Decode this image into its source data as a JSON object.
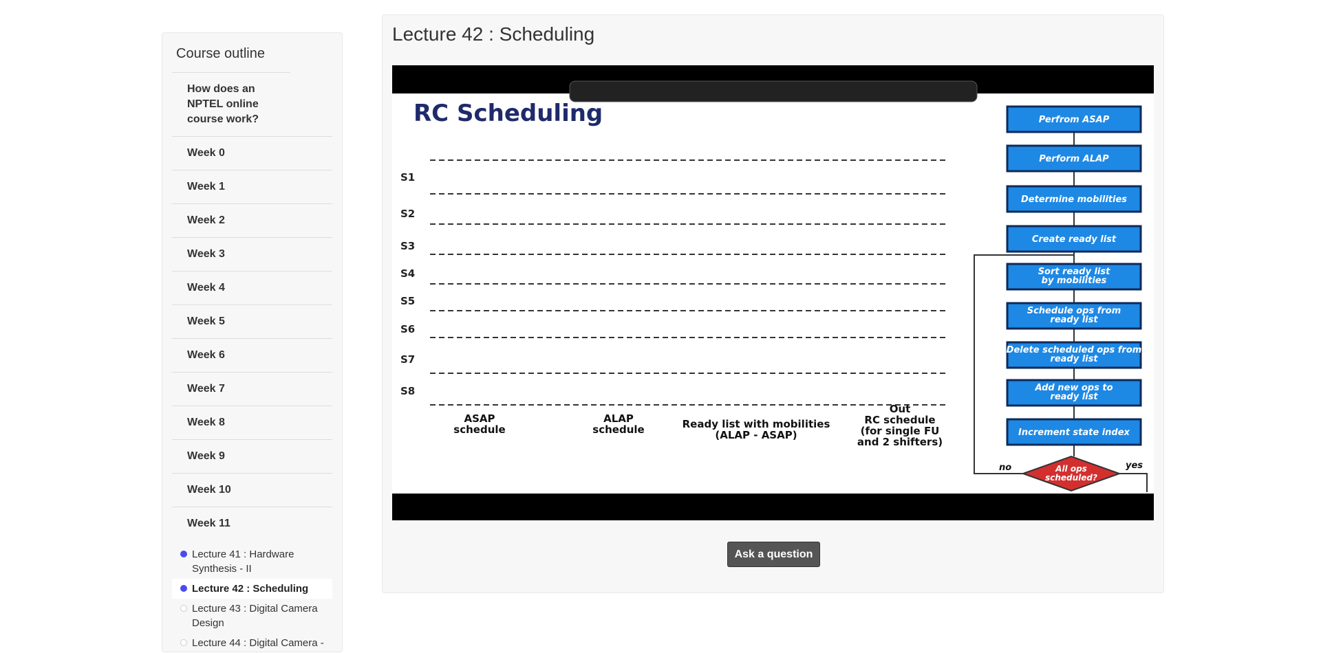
{
  "sidebar": {
    "title": "Course outline",
    "items": [
      "How does an NPTEL online course work?",
      "Week 0",
      "Week 1",
      "Week 2",
      "Week 3",
      "Week 4",
      "Week 5",
      "Week 6",
      "Week 7",
      "Week 8",
      "Week 9",
      "Week 10",
      "Week 11"
    ],
    "lectures": [
      {
        "label": "Lecture 41 : Hardware Synthesis - II",
        "status": "done"
      },
      {
        "label": "Lecture 42 : Scheduling",
        "status": "current"
      },
      {
        "label": "Lecture 43 : Digital Camera Design",
        "status": "todo"
      },
      {
        "label": "Lecture 44 : Digital Camera -",
        "status": "todo"
      }
    ]
  },
  "main": {
    "title": "Lecture 42 : Scheduling",
    "button": "Ask a question",
    "slide": {
      "title": "RC Scheduling",
      "stages": [
        "S1",
        "S2",
        "S3",
        "S4",
        "S5",
        "S6",
        "S7",
        "S8"
      ],
      "captions": [
        [
          "ASAP",
          "schedule"
        ],
        [
          "ALAP",
          "schedule"
        ],
        [
          "Ready list with mobilities",
          "(ALAP - ASAP)"
        ],
        [
          "Out",
          "RC schedule",
          "(for single FU",
          "and 2 shifters)"
        ]
      ],
      "steps": [
        "Perfrom ASAP",
        "Perform ALAP",
        "Determine mobilities",
        "Create ready list",
        "Sort ready list by mobilities",
        "Schedule ops from ready list",
        "Delete scheduled ops from ready list",
        "Add new ops to ready list",
        "Increment state index"
      ],
      "decision": "All ops scheduled?",
      "no": "no",
      "yes": "yes"
    }
  }
}
